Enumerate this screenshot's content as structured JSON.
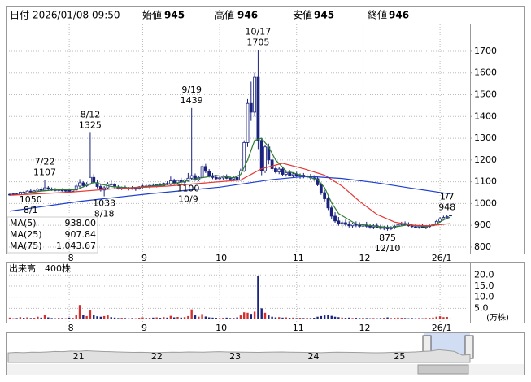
{
  "chart_data": {
    "type": "candlestick",
    "quote": {
      "date_label": "日付",
      "date": "2026/01/08 09:50",
      "fields": [
        {
          "name": "始値",
          "value": 945,
          "color": "#000000"
        },
        {
          "name": "高値",
          "value": 946,
          "color": "#e00000"
        },
        {
          "name": "安値",
          "value": 945,
          "color": "#008000"
        },
        {
          "name": "終値",
          "value": 946,
          "color": "#000000"
        }
      ]
    },
    "categories": [
      null,
      null,
      null,
      null,
      null,
      null,
      null,
      null,
      null,
      null,
      null,
      null,
      null,
      null,
      null,
      null,
      null,
      "8",
      null,
      null,
      null,
      null,
      null,
      null,
      null,
      null,
      null,
      null,
      null,
      null,
      null,
      null,
      null,
      null,
      null,
      null,
      null,
      null,
      "9",
      null,
      null,
      null,
      null,
      null,
      null,
      null,
      null,
      null,
      null,
      null,
      null,
      null,
      null,
      null,
      null,
      null,
      null,
      null,
      null,
      null,
      "10",
      null,
      null,
      null,
      null,
      null,
      null,
      null,
      null,
      null,
      null,
      null,
      null,
      null,
      null,
      null,
      null,
      null,
      null,
      null,
      null,
      null,
      "11",
      null,
      null,
      null,
      null,
      null,
      null,
      null,
      null,
      null,
      null,
      null,
      null,
      null,
      null,
      null,
      null,
      null,
      null,
      "12",
      null,
      null,
      null,
      null,
      null,
      null,
      null,
      null,
      null,
      null,
      null,
      null,
      null,
      null,
      null,
      null,
      null,
      null,
      null,
      null,
      null,
      "26/1",
      null,
      null,
      null
    ],
    "ohlc": [
      [
        1040,
        1046,
        1036,
        1042
      ],
      [
        1042,
        1048,
        1038,
        1044
      ],
      [
        1044,
        1049,
        1040,
        1041
      ],
      [
        1041,
        1055,
        1039,
        1052
      ],
      [
        1052,
        1058,
        1045,
        1048
      ],
      [
        1048,
        1060,
        1046,
        1057
      ],
      [
        1057,
        1066,
        1050,
        1053
      ],
      [
        1053,
        1062,
        1048,
        1058
      ],
      [
        1058,
        1070,
        1054,
        1066
      ],
      [
        1066,
        1075,
        1058,
        1061
      ],
      [
        1061,
        1107,
        1058,
        1072
      ],
      [
        1072,
        1080,
        1062,
        1066
      ],
      [
        1066,
        1074,
        1058,
        1063
      ],
      [
        1063,
        1071,
        1056,
        1060
      ],
      [
        1060,
        1068,
        1054,
        1064
      ],
      [
        1064,
        1070,
        1055,
        1058
      ],
      [
        1058,
        1065,
        1052,
        1060
      ],
      [
        1060,
        1064,
        1050,
        1056
      ],
      [
        1056,
        1066,
        1053,
        1062
      ],
      [
        1062,
        1088,
        1058,
        1080
      ],
      [
        1080,
        1112,
        1070,
        1095
      ],
      [
        1095,
        1102,
        1074,
        1082
      ],
      [
        1082,
        1098,
        1076,
        1090
      ],
      [
        1090,
        1325,
        1085,
        1120
      ],
      [
        1120,
        1135,
        1088,
        1096
      ],
      [
        1096,
        1110,
        1070,
        1078
      ],
      [
        1078,
        1090,
        1055,
        1062
      ],
      [
        1062,
        1080,
        1033,
        1072
      ],
      [
        1072,
        1098,
        1066,
        1090
      ],
      [
        1090,
        1108,
        1082,
        1086
      ],
      [
        1086,
        1094,
        1070,
        1076
      ],
      [
        1076,
        1084,
        1064,
        1070
      ],
      [
        1070,
        1078,
        1062,
        1074
      ],
      [
        1074,
        1082,
        1066,
        1068
      ],
      [
        1068,
        1076,
        1060,
        1072
      ],
      [
        1072,
        1080,
        1064,
        1066
      ],
      [
        1066,
        1074,
        1058,
        1070
      ],
      [
        1070,
        1080,
        1064,
        1076
      ],
      [
        1076,
        1086,
        1070,
        1080
      ],
      [
        1080,
        1088,
        1072,
        1078
      ],
      [
        1078,
        1086,
        1070,
        1083
      ],
      [
        1083,
        1092,
        1076,
        1080
      ],
      [
        1080,
        1090,
        1074,
        1086
      ],
      [
        1086,
        1094,
        1078,
        1082
      ],
      [
        1082,
        1096,
        1078,
        1092
      ],
      [
        1092,
        1102,
        1084,
        1088
      ],
      [
        1088,
        1124,
        1084,
        1104
      ],
      [
        1104,
        1114,
        1086,
        1094
      ],
      [
        1094,
        1110,
        1088,
        1106
      ],
      [
        1106,
        1118,
        1092,
        1098
      ],
      [
        1098,
        1112,
        1090,
        1108
      ],
      [
        1108,
        1140,
        1100,
        1116
      ],
      [
        1116,
        1439,
        1108,
        1128
      ],
      [
        1128,
        1138,
        1104,
        1110
      ],
      [
        1110,
        1126,
        1102,
        1120
      ],
      [
        1120,
        1180,
        1114,
        1170
      ],
      [
        1170,
        1182,
        1140,
        1148
      ],
      [
        1148,
        1158,
        1120,
        1128
      ],
      [
        1128,
        1140,
        1112,
        1120
      ],
      [
        1120,
        1132,
        1108,
        1114
      ],
      [
        1114,
        1126,
        1106,
        1118
      ],
      [
        1118,
        1130,
        1110,
        1124
      ],
      [
        1124,
        1134,
        1112,
        1116
      ],
      [
        1116,
        1128,
        1106,
        1112
      ],
      [
        1112,
        1124,
        1104,
        1120
      ],
      [
        1120,
        1130,
        1100,
        1108
      ],
      [
        1108,
        1160,
        1104,
        1150
      ],
      [
        1150,
        1290,
        1145,
        1280
      ],
      [
        1280,
        1480,
        1260,
        1460
      ],
      [
        1460,
        1560,
        1380,
        1420
      ],
      [
        1420,
        1600,
        1400,
        1580
      ],
      [
        1580,
        1705,
        1250,
        1290
      ],
      [
        1290,
        1300,
        1130,
        1150
      ],
      [
        1150,
        1270,
        1140,
        1260
      ],
      [
        1260,
        1275,
        1180,
        1200
      ],
      [
        1200,
        1215,
        1150,
        1160
      ],
      [
        1160,
        1172,
        1138,
        1145
      ],
      [
        1145,
        1168,
        1135,
        1158
      ],
      [
        1158,
        1166,
        1128,
        1134
      ],
      [
        1134,
        1150,
        1124,
        1142
      ],
      [
        1142,
        1154,
        1126,
        1130
      ],
      [
        1130,
        1144,
        1118,
        1136
      ],
      [
        1136,
        1146,
        1122,
        1126
      ],
      [
        1126,
        1138,
        1114,
        1130
      ],
      [
        1130,
        1140,
        1116,
        1122
      ],
      [
        1122,
        1134,
        1112,
        1126
      ],
      [
        1126,
        1136,
        1110,
        1118
      ],
      [
        1118,
        1130,
        1104,
        1114
      ],
      [
        1114,
        1124,
        1080,
        1086
      ],
      [
        1086,
        1096,
        1040,
        1050
      ],
      [
        1050,
        1062,
        1010,
        1022
      ],
      [
        1022,
        1034,
        970,
        980
      ],
      [
        980,
        992,
        930,
        942
      ],
      [
        942,
        960,
        912,
        920
      ],
      [
        920,
        938,
        898,
        908
      ],
      [
        908,
        922,
        890,
        912
      ],
      [
        912,
        926,
        896,
        904
      ],
      [
        904,
        918,
        890,
        898
      ],
      [
        898,
        912,
        886,
        906
      ],
      [
        906,
        918,
        892,
        900
      ],
      [
        900,
        914,
        888,
        896
      ],
      [
        896,
        910,
        884,
        902
      ],
      [
        902,
        916,
        890,
        896
      ],
      [
        896,
        908,
        884,
        892
      ],
      [
        892,
        906,
        882,
        898
      ],
      [
        898,
        910,
        886,
        890
      ],
      [
        890,
        902,
        880,
        886
      ],
      [
        886,
        898,
        878,
        892
      ],
      [
        892,
        900,
        875,
        884
      ],
      [
        884,
        896,
        878,
        890
      ],
      [
        890,
        902,
        882,
        896
      ],
      [
        896,
        910,
        890,
        904
      ],
      [
        904,
        916,
        896,
        908
      ],
      [
        908,
        918,
        898,
        902
      ],
      [
        902,
        914,
        894,
        898
      ],
      [
        898,
        908,
        890,
        894
      ],
      [
        894,
        904,
        886,
        892
      ],
      [
        892,
        902,
        884,
        896
      ],
      [
        896,
        906,
        888,
        890
      ],
      [
        890,
        900,
        882,
        894
      ],
      [
        894,
        904,
        886,
        898
      ],
      [
        898,
        912,
        892,
        906
      ],
      [
        906,
        924,
        900,
        918
      ],
      [
        918,
        938,
        912,
        930
      ],
      [
        930,
        944,
        922,
        936
      ],
      [
        936,
        948,
        928,
        940
      ],
      [
        945,
        946,
        945,
        946
      ]
    ],
    "up_color": "#ffffff",
    "down_color": "#1a237e",
    "outline_color": "#1a237e",
    "ylim": [
      770,
      1823
    ],
    "yticks": [
      800,
      900,
      1000,
      1100,
      1200,
      1300,
      1400,
      1500,
      1600,
      1700
    ],
    "grid": true,
    "annotations": [
      {
        "date": "7/22",
        "value": 1107
      },
      {
        "date": "8/1",
        "value": 1050
      },
      {
        "date": "8/12",
        "value": 1325
      },
      {
        "date": "8/18",
        "value": 1033
      },
      {
        "date": "9/19",
        "value": 1439
      },
      {
        "date": "10/9",
        "value": 1100
      },
      {
        "date": "10/17",
        "value": 1705
      },
      {
        "date": "12/10",
        "value": 875
      },
      {
        "date": "1/7",
        "value": 948
      }
    ],
    "series": [
      {
        "name": "MA(5)",
        "color": "#2e7d32",
        "last_label": "938.00",
        "x": [
          4,
          9,
          14,
          19,
          24,
          29,
          34,
          39,
          44,
          49,
          54,
          59,
          64,
          66,
          68,
          70,
          72,
          74,
          76,
          79,
          84,
          88,
          90,
          92,
          94,
          99,
          104,
          109,
          114,
          119,
          122,
          124,
          126
        ],
        "values": [
          1045,
          1057,
          1064,
          1063,
          1097,
          1078,
          1072,
          1077,
          1085,
          1098,
          1116,
          1129,
          1118,
          1133,
          1200,
          1290,
          1300,
          1260,
          1200,
          1150,
          1127,
          1110,
          1073,
          1004,
          954,
          906,
          897,
          889,
          903,
          894,
          906,
          925,
          938
        ]
      },
      {
        "name": "MA(25)",
        "color": "#e53935",
        "last_label": "907.84",
        "x": [
          0,
          17,
          30,
          45,
          60,
          66,
          72,
          78,
          84,
          90,
          95,
          100,
          105,
          110,
          115,
          120,
          126
        ],
        "values": [
          1038,
          1052,
          1068,
          1080,
          1100,
          1108,
          1160,
          1185,
          1160,
          1130,
          1080,
          1010,
          950,
          915,
          900,
          898,
          907.84
        ]
      },
      {
        "name": "MA(75)",
        "color": "#1e3fd0",
        "last_label": "1,043.67",
        "x": [
          0,
          20,
          40,
          60,
          75,
          85,
          95,
          105,
          115,
          126
        ],
        "values": [
          965,
          1010,
          1045,
          1075,
          1110,
          1125,
          1115,
          1095,
          1070,
          1043.67
        ]
      }
    ],
    "volume": {
      "title": "出来高　400株",
      "unit": "(万株)",
      "up_color": "#d32f2f",
      "down_color": "#1a237e",
      "ylim": [
        0,
        22.3
      ],
      "yticks": [
        {
          "value": 5,
          "label": "5.0"
        },
        {
          "value": 10,
          "label": "10.0"
        },
        {
          "value": 15,
          "label": "15.0"
        },
        {
          "value": 20,
          "label": "20.0"
        }
      ],
      "values": [
        0.8,
        0.5,
        0.6,
        1.0,
        0.7,
        0.9,
        0.6,
        0.7,
        1.2,
        0.8,
        2.0,
        0.9,
        0.6,
        0.5,
        0.7,
        0.6,
        0.5,
        0.8,
        0.7,
        2.2,
        6.5,
        2.0,
        1.5,
        4.0,
        2.2,
        1.4,
        1.2,
        1.5,
        1.8,
        1.0,
        0.8,
        0.6,
        0.7,
        0.6,
        0.5,
        0.6,
        0.5,
        0.7,
        0.9,
        0.6,
        0.7,
        0.8,
        0.9,
        0.7,
        1.0,
        0.8,
        1.6,
        0.9,
        1.1,
        0.8,
        1.0,
        1.5,
        4.5,
        1.8,
        1.2,
        2.4,
        1.3,
        0.9,
        0.8,
        0.7,
        0.6,
        0.7,
        0.8,
        0.6,
        0.7,
        0.9,
        1.8,
        3.2,
        3.0,
        2.5,
        3.5,
        19.5,
        5.0,
        3.0,
        1.8,
        1.2,
        0.9,
        1.0,
        0.8,
        0.9,
        0.7,
        0.8,
        0.6,
        0.7,
        0.6,
        0.7,
        0.6,
        0.7,
        1.2,
        1.5,
        1.8,
        2.0,
        1.6,
        1.2,
        1.0,
        0.8,
        0.7,
        0.8,
        0.6,
        0.7,
        0.6,
        0.7,
        0.6,
        0.5,
        0.6,
        0.5,
        0.6,
        0.7,
        0.9,
        0.6,
        0.7,
        0.8,
        0.7,
        0.6,
        0.5,
        0.6,
        0.5,
        0.6,
        0.5,
        0.6,
        0.7,
        0.8,
        1.2,
        1.4,
        1.0,
        1.1,
        0.4
      ]
    },
    "navigator": {
      "color": "#9e9e9e",
      "ylim": [
        600,
        1800
      ],
      "categories": [
        null,
        null,
        null,
        null,
        null,
        null,
        null,
        null,
        null,
        "21",
        null,
        null,
        null,
        null,
        null,
        null,
        null,
        null,
        null,
        "22",
        null,
        null,
        null,
        null,
        null,
        null,
        null,
        null,
        null,
        "23",
        null,
        null,
        null,
        null,
        null,
        null,
        null,
        null,
        null,
        "24",
        null,
        null,
        null,
        null,
        null,
        null,
        null,
        null,
        null,
        null,
        "25",
        null,
        null,
        null,
        null,
        null,
        null,
        null,
        null,
        null
      ],
      "values": [
        1020,
        1040,
        1030,
        1050,
        1045,
        1060,
        1080,
        1070,
        1100,
        1090,
        1110,
        1095,
        1080,
        1070,
        1060,
        1050,
        1040,
        1045,
        1035,
        1030,
        1040,
        1050,
        1045,
        1060,
        1055,
        1050,
        1065,
        1070,
        1060,
        1055,
        1050,
        1045,
        1040,
        1050,
        1055,
        1060,
        1050,
        1045,
        1040,
        1035,
        1030,
        1040,
        1050,
        1045,
        1040,
        1035,
        1030,
        1025,
        1030,
        1040,
        1050,
        1045,
        1060,
        1080,
        1100,
        1150,
        1120,
        1080,
        920,
        940
      ]
    }
  }
}
